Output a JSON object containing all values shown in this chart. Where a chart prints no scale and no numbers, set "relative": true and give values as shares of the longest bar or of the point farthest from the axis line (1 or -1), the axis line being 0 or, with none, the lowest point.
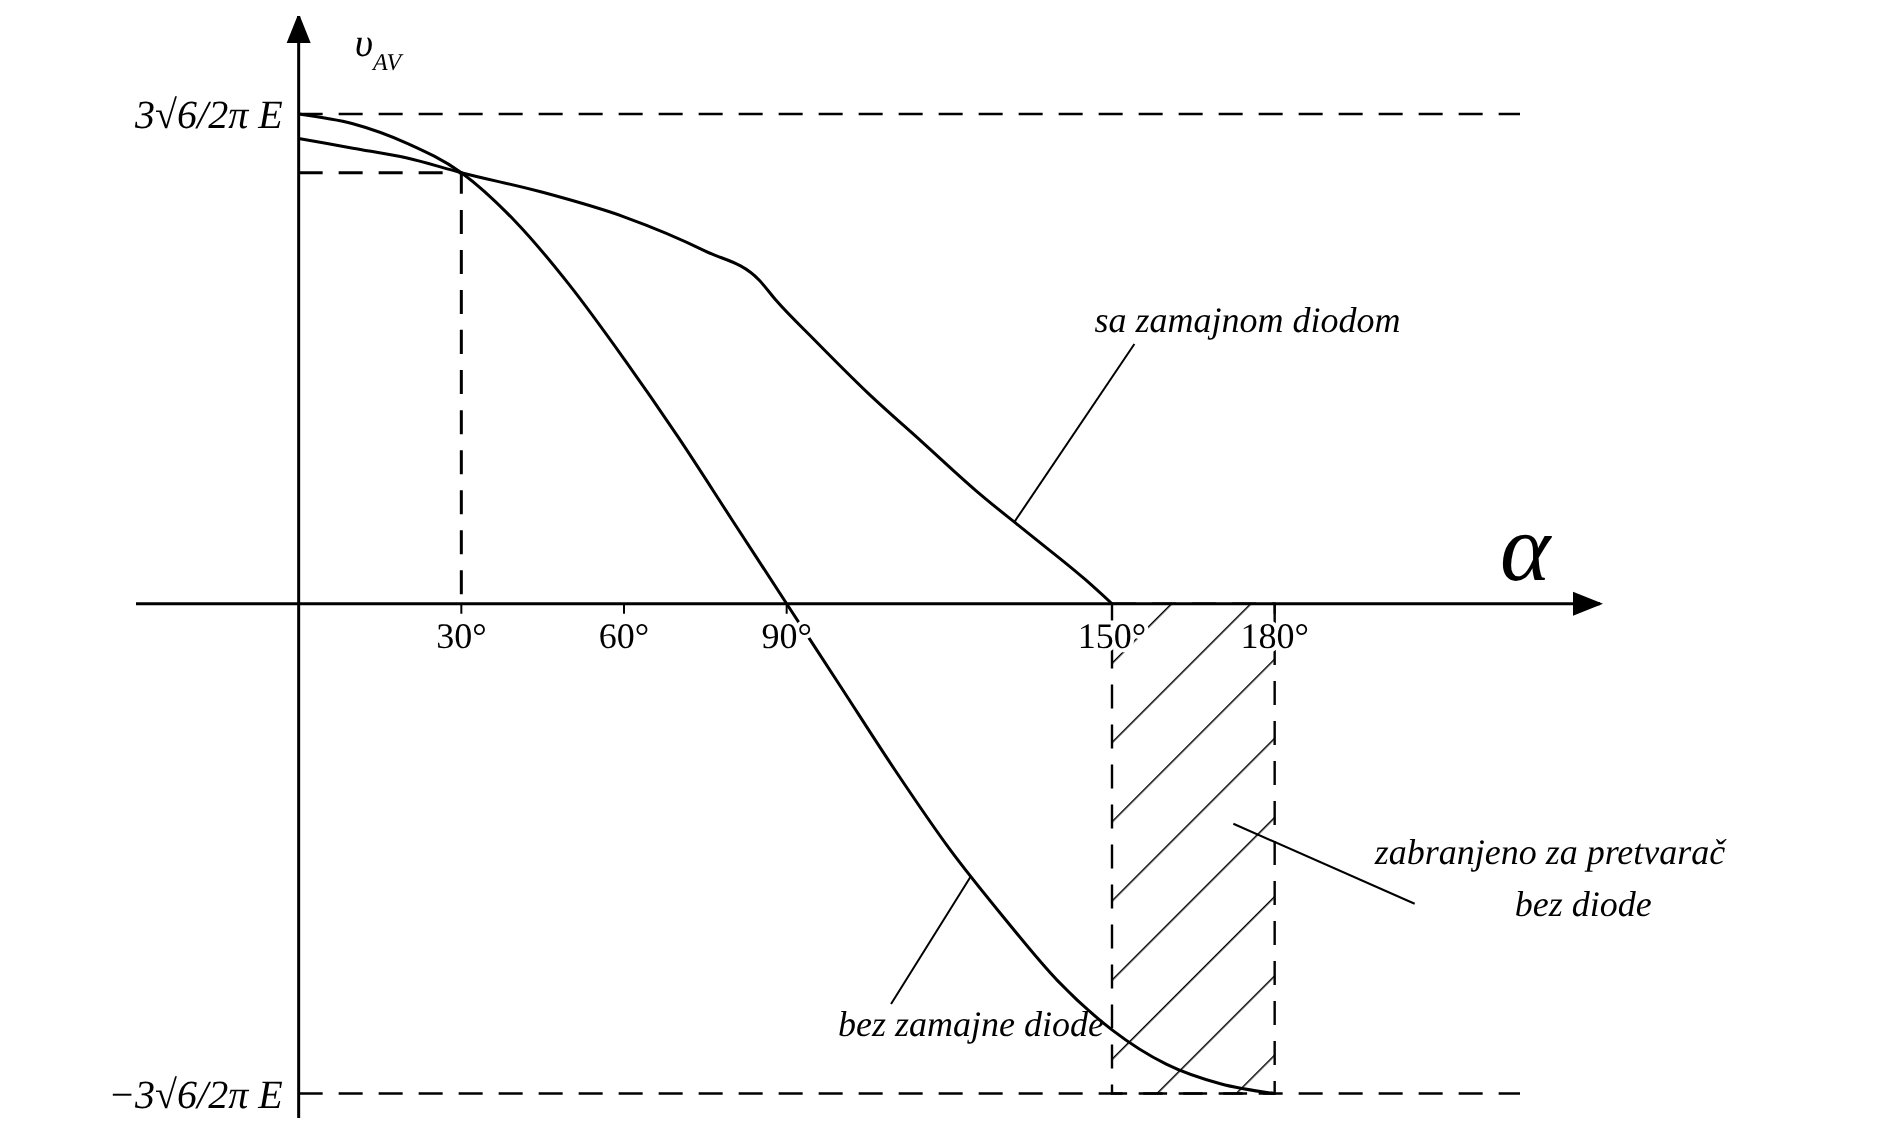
{
  "chart_data": {
    "type": "line",
    "xlabel": "α",
    "ylabel": "υ$_{AV}$",
    "xlim": [
      -30,
      240
    ],
    "relative": true,
    "xticks": [
      {
        "value": 30,
        "label": "30°"
      },
      {
        "value": 60,
        "label": "60°"
      },
      {
        "value": 90,
        "label": "90°"
      },
      {
        "value": 150,
        "label": "150°"
      },
      {
        "value": 180,
        "label": "180°"
      }
    ],
    "series": [
      {
        "name": "sa zamajnom diodom",
        "color": "#000000",
        "x": [
          0,
          10,
          20,
          30,
          45,
          60,
          75,
          85,
          88,
          95,
          105,
          115,
          125,
          135,
          145,
          150
        ],
        "values": [
          0.95,
          0.93,
          0.91,
          0.88,
          0.84,
          0.79,
          0.72,
          0.66,
          0.62,
          0.54,
          0.43,
          0.33,
          0.23,
          0.14,
          0.05,
          0
        ]
      },
      {
        "name": "bez zamajne diode",
        "color": "#000000",
        "x": [
          0,
          10,
          20,
          30,
          40,
          50,
          60,
          70,
          80,
          90,
          100,
          110,
          120,
          130,
          140,
          150,
          160,
          170,
          180
        ],
        "values": [
          1,
          0.98,
          0.94,
          0.88,
          0.78,
          0.65,
          0.5,
          0.34,
          0.17,
          0,
          -0.17,
          -0.34,
          -0.5,
          -0.64,
          -0.77,
          -0.87,
          -0.94,
          -0.98,
          -1
        ]
      },
      {
        "color": "#000000",
        "line_style": "dashed",
        "x": [
          0,
          30,
          30
        ],
        "values": [
          0.88,
          0.88,
          0
        ]
      }
    ],
    "ref_lines": [
      {
        "axis": "y",
        "value": 1,
        "label": "3√6/2π E",
        "line_style": "dashed",
        "color": "#000000"
      },
      {
        "axis": "y",
        "value": -1,
        "label": "−3√6/2π E",
        "line_style": "dashed",
        "color": "#000000"
      }
    ],
    "bands": [
      {
        "axis": "x",
        "from": 150,
        "to": 180,
        "label": "zabranjeno za pretvarač\nbez diode"
      }
    ],
    "marker": "none"
  }
}
